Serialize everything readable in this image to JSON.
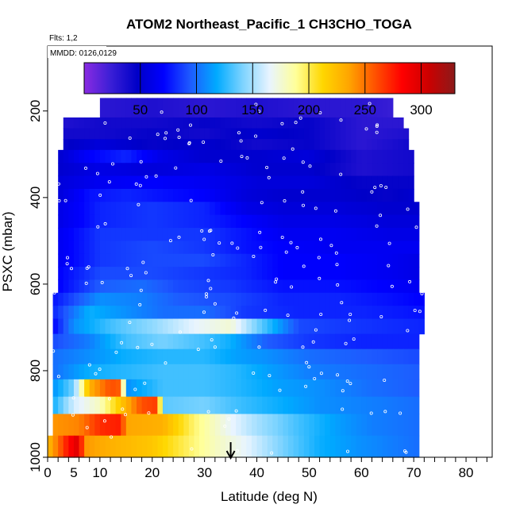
{
  "chart_data": {
    "type": "heatmap",
    "title": "ATOM2 Northeast_Pacific_1 CH3CHO_TOGA",
    "flights_label": "Flts: 1,2",
    "dates_label": "MMDD: 0126,0129",
    "xlabel": "Latitude (deg N)",
    "ylabel": "PSXC (mbar)",
    "xlim": [
      0,
      85
    ],
    "ylim": [
      1000,
      50
    ],
    "x_ticks": [
      0,
      2,
      4,
      6,
      8,
      10,
      12,
      14,
      16,
      18,
      20,
      22,
      24,
      26,
      28,
      30,
      32,
      34,
      36,
      38,
      40,
      42,
      44,
      46,
      48,
      50,
      52,
      54,
      56,
      58,
      60,
      62,
      64,
      66,
      68,
      70,
      72,
      74,
      76,
      78,
      80,
      82,
      84
    ],
    "x_tick_labels": [
      "0",
      "5",
      "10",
      "20",
      "30",
      "40",
      "50",
      "60",
      "70",
      "80"
    ],
    "y_tick_labels": [
      "200",
      "400",
      "600",
      "800",
      "1000"
    ],
    "colorbar": {
      "min": 0,
      "max": 330,
      "ticks": [
        "50",
        "100",
        "150",
        "200",
        "250",
        "300"
      ],
      "tick_values": [
        50,
        100,
        150,
        200,
        250,
        300
      ],
      "colors": [
        "#8a2be2",
        "#3b1fd6",
        "#0000c8",
        "#0000ff",
        "#1e5aff",
        "#00aaff",
        "#7fd4ff",
        "#e8f4ff",
        "#ffff99",
        "#ffd700",
        "#ffa500",
        "#ff5000",
        "#ff0000",
        "#cc0000",
        "#8b1a1a"
      ]
    },
    "marker_latitude": 35,
    "marker_label": "arrow",
    "rows": [
      {
        "p": [
          170,
          215
        ],
        "x0": 10,
        "x1": 66,
        "values": [
          [
            10,
            30
          ],
          [
            20,
            35
          ],
          [
            30,
            30
          ],
          [
            40,
            35
          ],
          [
            50,
            30
          ],
          [
            60,
            30
          ],
          [
            66,
            25
          ]
        ]
      },
      {
        "p": [
          215,
          240
        ],
        "x0": 3,
        "x1": 68,
        "values": [
          [
            3,
            35
          ],
          [
            10,
            40
          ],
          [
            20,
            40
          ],
          [
            30,
            45
          ],
          [
            40,
            40
          ],
          [
            50,
            45
          ],
          [
            60,
            30
          ],
          [
            68,
            30
          ]
        ]
      },
      {
        "p": [
          240,
          265
        ],
        "x0": 3,
        "x1": 69,
        "values": [
          [
            3,
            40
          ],
          [
            10,
            40
          ],
          [
            20,
            45
          ],
          [
            30,
            40
          ],
          [
            40,
            50
          ],
          [
            50,
            45
          ],
          [
            60,
            30
          ],
          [
            69,
            35
          ]
        ]
      },
      {
        "p": [
          265,
          290
        ],
        "x0": 3,
        "x1": 69,
        "values": [
          [
            3,
            45
          ],
          [
            10,
            55
          ],
          [
            20,
            45
          ],
          [
            30,
            50
          ],
          [
            40,
            40
          ],
          [
            50,
            45
          ],
          [
            60,
            30
          ],
          [
            69,
            40
          ]
        ]
      },
      {
        "p": [
          290,
          320
        ],
        "x0": 2,
        "x1": 70,
        "values": [
          [
            2,
            50
          ],
          [
            8,
            70
          ],
          [
            15,
            80
          ],
          [
            22,
            60
          ],
          [
            30,
            50
          ],
          [
            40,
            50
          ],
          [
            50,
            55
          ],
          [
            60,
            35
          ],
          [
            70,
            40
          ]
        ]
      },
      {
        "p": [
          320,
          350
        ],
        "x0": 2,
        "x1": 70,
        "values": [
          [
            2,
            50
          ],
          [
            10,
            60
          ],
          [
            20,
            55
          ],
          [
            30,
            60
          ],
          [
            40,
            50
          ],
          [
            50,
            50
          ],
          [
            60,
            35
          ],
          [
            70,
            40
          ]
        ]
      },
      {
        "p": [
          350,
          380
        ],
        "x0": 2,
        "x1": 70,
        "values": [
          [
            2,
            55
          ],
          [
            10,
            65
          ],
          [
            20,
            70
          ],
          [
            30,
            65
          ],
          [
            40,
            55
          ],
          [
            50,
            55
          ],
          [
            60,
            45
          ],
          [
            70,
            45
          ]
        ]
      },
      {
        "p": [
          380,
          410
        ],
        "x0": 2,
        "x1": 70,
        "values": [
          [
            2,
            55
          ],
          [
            8,
            75
          ],
          [
            15,
            80
          ],
          [
            22,
            75
          ],
          [
            30,
            70
          ],
          [
            38,
            55
          ],
          [
            45,
            50
          ],
          [
            55,
            50
          ],
          [
            65,
            45
          ],
          [
            70,
            50
          ]
        ]
      },
      {
        "p": [
          410,
          440
        ],
        "x0": 2,
        "x1": 71,
        "values": [
          [
            2,
            60
          ],
          [
            10,
            80
          ],
          [
            20,
            85
          ],
          [
            30,
            80
          ],
          [
            38,
            60
          ],
          [
            45,
            55
          ],
          [
            55,
            55
          ],
          [
            65,
            50
          ],
          [
            71,
            50
          ]
        ]
      },
      {
        "p": [
          440,
          470
        ],
        "x0": 2,
        "x1": 71,
        "values": [
          [
            2,
            60
          ],
          [
            10,
            80
          ],
          [
            20,
            85
          ],
          [
            30,
            80
          ],
          [
            38,
            70
          ],
          [
            45,
            60
          ],
          [
            55,
            60
          ],
          [
            65,
            55
          ],
          [
            71,
            55
          ]
        ]
      },
      {
        "p": [
          470,
          500
        ],
        "x0": 2,
        "x1": 71,
        "values": [
          [
            2,
            65
          ],
          [
            10,
            85
          ],
          [
            20,
            85
          ],
          [
            30,
            85
          ],
          [
            38,
            75
          ],
          [
            45,
            65
          ],
          [
            55,
            65
          ],
          [
            65,
            60
          ],
          [
            71,
            60
          ]
        ]
      },
      {
        "p": [
          500,
          530
        ],
        "x0": 2,
        "x1": 71,
        "values": [
          [
            2,
            65
          ],
          [
            10,
            85
          ],
          [
            20,
            90
          ],
          [
            30,
            85
          ],
          [
            38,
            75
          ],
          [
            45,
            70
          ],
          [
            55,
            65
          ],
          [
            65,
            65
          ],
          [
            71,
            65
          ]
        ]
      },
      {
        "p": [
          530,
          560
        ],
        "x0": 2,
        "x1": 71,
        "values": [
          [
            2,
            65
          ],
          [
            10,
            85
          ],
          [
            20,
            90
          ],
          [
            30,
            90
          ],
          [
            38,
            80
          ],
          [
            45,
            70
          ],
          [
            55,
            70
          ],
          [
            65,
            65
          ],
          [
            71,
            60
          ]
        ]
      },
      {
        "p": [
          560,
          590
        ],
        "x0": 2,
        "x1": 71,
        "values": [
          [
            2,
            70
          ],
          [
            10,
            90
          ],
          [
            20,
            90
          ],
          [
            30,
            85
          ],
          [
            38,
            80
          ],
          [
            45,
            70
          ],
          [
            55,
            70
          ],
          [
            65,
            65
          ],
          [
            71,
            60
          ]
        ]
      },
      {
        "p": [
          590,
          620
        ],
        "x0": 2,
        "x1": 71,
        "values": [
          [
            2,
            70
          ],
          [
            10,
            95
          ],
          [
            18,
            100
          ],
          [
            25,
            90
          ],
          [
            35,
            85
          ],
          [
            45,
            75
          ],
          [
            55,
            75
          ],
          [
            65,
            70
          ],
          [
            71,
            65
          ]
        ]
      },
      {
        "p": [
          620,
          650
        ],
        "x0": 1,
        "x1": 72,
        "values": [
          [
            1,
            75
          ],
          [
            10,
            110
          ],
          [
            18,
            105
          ],
          [
            25,
            95
          ],
          [
            35,
            90
          ],
          [
            45,
            80
          ],
          [
            55,
            80
          ],
          [
            65,
            75
          ],
          [
            72,
            70
          ]
        ]
      },
      {
        "p": [
          650,
          680
        ],
        "x0": 1,
        "x1": 72,
        "values": [
          [
            1,
            80
          ],
          [
            8,
            120
          ],
          [
            15,
            110
          ],
          [
            22,
            100
          ],
          [
            30,
            100
          ],
          [
            38,
            85
          ],
          [
            48,
            80
          ],
          [
            60,
            80
          ],
          [
            72,
            75
          ]
        ]
      },
      {
        "p": [
          680,
          715
        ],
        "x0": 1,
        "x1": 72,
        "values": [
          [
            1,
            70
          ],
          [
            5,
            110
          ],
          [
            12,
            130
          ],
          [
            20,
            145
          ],
          [
            28,
            165
          ],
          [
            35,
            175
          ],
          [
            40,
            140
          ],
          [
            48,
            90
          ],
          [
            58,
            85
          ],
          [
            72,
            80
          ]
        ]
      },
      {
        "p": [
          715,
          750
        ],
        "x0": 1,
        "x1": 71,
        "values": [
          [
            1,
            90
          ],
          [
            8,
            105
          ],
          [
            15,
            130
          ],
          [
            22,
            140
          ],
          [
            30,
            130
          ],
          [
            35,
            120
          ],
          [
            42,
            95
          ],
          [
            50,
            85
          ],
          [
            60,
            80
          ],
          [
            71,
            80
          ]
        ]
      },
      {
        "p": [
          750,
          785
        ],
        "x0": 1,
        "x1": 71,
        "values": [
          [
            1,
            100
          ],
          [
            8,
            110
          ],
          [
            15,
            120
          ],
          [
            22,
            125
          ],
          [
            30,
            125
          ],
          [
            36,
            115
          ],
          [
            42,
            110
          ],
          [
            50,
            100
          ],
          [
            60,
            95
          ],
          [
            71,
            90
          ]
        ]
      },
      {
        "p": [
          785,
          820
        ],
        "x0": 1,
        "x1": 71,
        "values": [
          [
            1,
            100
          ],
          [
            8,
            120
          ],
          [
            15,
            125
          ],
          [
            22,
            130
          ],
          [
            30,
            130
          ],
          [
            36,
            125
          ],
          [
            42,
            115
          ],
          [
            50,
            105
          ],
          [
            60,
            100
          ],
          [
            71,
            95
          ]
        ]
      },
      {
        "p": [
          820,
          860
        ],
        "x0": 1,
        "x1": 71,
        "values": [
          [
            1,
            110
          ],
          [
            5,
            140
          ],
          [
            8,
            230
          ],
          [
            12,
            260
          ],
          [
            14,
            255
          ],
          [
            15,
            110
          ],
          [
            22,
            130
          ],
          [
            30,
            130
          ],
          [
            36,
            125
          ],
          [
            44,
            115
          ],
          [
            52,
            110
          ],
          [
            62,
            100
          ],
          [
            71,
            95
          ]
        ]
      },
      {
        "p": [
          860,
          900
        ],
        "x0": 1,
        "x1": 71,
        "values": [
          [
            1,
            120
          ],
          [
            5,
            160
          ],
          [
            10,
            180
          ],
          [
            14,
            220
          ],
          [
            18,
            260
          ],
          [
            21,
            265
          ],
          [
            22,
            135
          ],
          [
            30,
            140
          ],
          [
            36,
            130
          ],
          [
            44,
            120
          ],
          [
            52,
            110
          ],
          [
            62,
            105
          ],
          [
            71,
            100
          ]
        ]
      },
      {
        "p": [
          900,
          950
        ],
        "x0": 1,
        "x1": 71,
        "values": [
          [
            1,
            240
          ],
          [
            6,
            245
          ],
          [
            10,
            270
          ],
          [
            14,
            275
          ],
          [
            15,
            235
          ],
          [
            22,
            230
          ],
          [
            28,
            195
          ],
          [
            34,
            170
          ],
          [
            40,
            150
          ],
          [
            48,
            130
          ],
          [
            55,
            115
          ],
          [
            62,
            105
          ],
          [
            71,
            100
          ]
        ]
      },
      {
        "p": [
          950,
          1000
        ],
        "x0": 0,
        "x1": 71,
        "values": [
          [
            0,
            225
          ],
          [
            2,
            250
          ],
          [
            4,
            280
          ],
          [
            6,
            300
          ],
          [
            7,
            240
          ],
          [
            12,
            230
          ],
          [
            20,
            220
          ],
          [
            26,
            200
          ],
          [
            32,
            180
          ],
          [
            38,
            165
          ],
          [
            45,
            140
          ],
          [
            52,
            120
          ],
          [
            60,
            110
          ],
          [
            71,
            100
          ]
        ]
      }
    ]
  }
}
